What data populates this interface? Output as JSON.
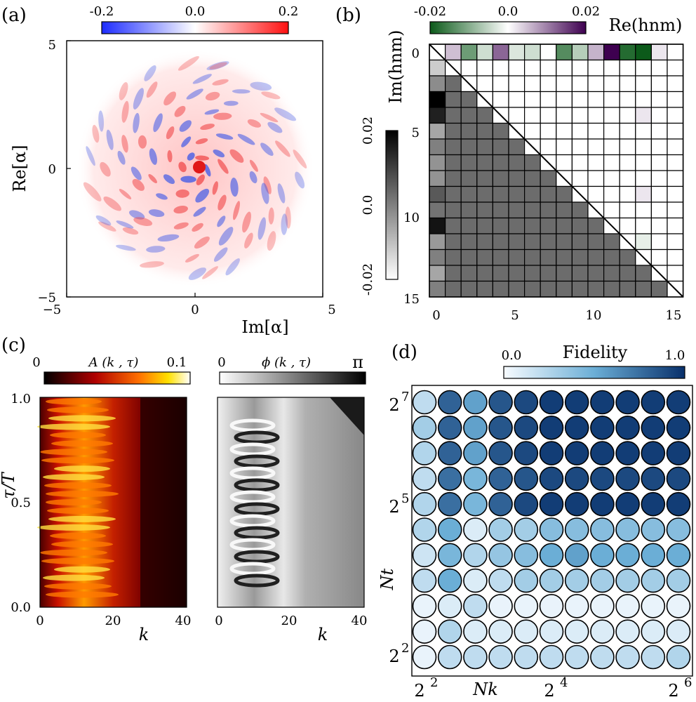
{
  "panels": {
    "a": {
      "label": "(a)",
      "xlabel": "Im[α]",
      "ylabel": "Re[α]",
      "xticks": [
        "−5",
        "0",
        "5"
      ],
      "yticks": [
        "5",
        "0",
        "−5"
      ],
      "colorbar": {
        "ticks": [
          "-0.2",
          "0.0",
          "0.2"
        ],
        "range": [
          -0.2,
          0.2
        ],
        "cmap": "bwr"
      }
    },
    "b": {
      "label": "(b)",
      "upper_label": "Re(hnm)",
      "lower_label": "Im(hnm)",
      "xticks": [
        "0",
        "5",
        "10",
        "15"
      ],
      "yticks": [
        "0",
        "5",
        "10",
        "15"
      ],
      "colorbar_re": {
        "ticks": [
          "-0.02",
          "0.0",
          "0.02"
        ],
        "range": [
          -0.02,
          0.02
        ],
        "cmap": "green-white-purple"
      },
      "colorbar_im": {
        "ticks": [
          "0.02",
          "0.0",
          "-0.02"
        ],
        "range": [
          -0.02,
          0.02
        ],
        "cmap": "grays"
      }
    },
    "c": {
      "label": "(c)",
      "ylabel": "τ/T",
      "xlabel_left": "k",
      "xlabel_right": "k",
      "yticks": [
        "1.0",
        "0.5",
        "0.0"
      ],
      "xticks": [
        "0",
        "20",
        "40"
      ],
      "amp_title": "A (k , τ)",
      "phase_title": "ϕ (k , τ)",
      "amp_cbar_ticks": [
        "0",
        "0.1"
      ],
      "phase_cbar_ticks": [
        "0",
        "π"
      ]
    },
    "d": {
      "label": "(d)",
      "title": "Fidelity",
      "cbar_ticks": [
        "0.0",
        "1.0"
      ],
      "xlabel": "Nk",
      "ylabel": "Nt"
    }
  },
  "chart_data": [
    {
      "panel": "a",
      "type": "heatmap",
      "description_free": true,
      "x_range": [
        -5,
        5
      ],
      "y_range": [
        -5,
        5
      ],
      "value_range": [
        -0.2,
        0.2
      ]
    },
    {
      "panel": "b",
      "type": "heatmap",
      "size": 16,
      "re_row0": [
        0,
        0.005,
        -0.012,
        -0.004,
        0.012,
        -0.003,
        -0.004,
        0,
        -0.014,
        -0.006,
        0.006,
        0.022,
        -0.018,
        -0.022,
        0.002,
        0
      ],
      "re_col13": [
        0,
        0,
        0,
        0,
        0.002,
        0,
        0,
        0,
        0,
        0.002,
        0,
        0,
        -0.002,
        0.006,
        0,
        0
      ],
      "im_col0": [
        0,
        -0.012,
        -0.002,
        0.02,
        0.015,
        -0.006,
        0,
        -0.003,
        -0.003,
        0.006,
        0.002,
        0.017,
        -0.004,
        0,
        -0.006,
        0
      ],
      "im_background": 0.003
    },
    {
      "panel": "c",
      "type": "heatmap",
      "series": [
        {
          "name": "A (k , τ)",
          "x_range": [
            0,
            40
          ],
          "y_range": [
            0,
            1
          ],
          "value_range": [
            0,
            0.1
          ]
        },
        {
          "name": "ϕ (k , τ)",
          "x_range": [
            0,
            40
          ],
          "y_range": [
            0,
            1
          ],
          "value_range": [
            0,
            3.1416
          ]
        }
      ]
    },
    {
      "panel": "d",
      "type": "heatmap",
      "xlabel": "Nk",
      "ylabel": "Nt",
      "x_tick_labels": [
        "2",
        "2",
        "2"
      ],
      "x_tick_powers": [
        "2",
        "4",
        "6"
      ],
      "y_tick_labels": [
        "2",
        "2",
        "2"
      ],
      "y_tick_powers": [
        "7",
        "5",
        "2"
      ],
      "value_range": [
        0,
        1
      ],
      "fidelity_rows_top_to_bottom": [
        [
          0.2,
          0.8,
          0.55,
          0.85,
          0.9,
          0.95,
          0.95,
          0.95,
          0.95,
          0.95,
          0.95
        ],
        [
          0.3,
          0.8,
          0.55,
          0.85,
          0.9,
          0.95,
          0.95,
          0.95,
          0.95,
          0.95,
          0.95
        ],
        [
          0.25,
          0.8,
          0.55,
          0.85,
          0.9,
          0.95,
          0.95,
          0.95,
          0.95,
          0.95,
          0.95
        ],
        [
          0.2,
          0.75,
          0.45,
          0.8,
          0.85,
          0.9,
          0.9,
          0.9,
          0.9,
          0.9,
          0.9
        ],
        [
          0.25,
          0.75,
          0.45,
          0.8,
          0.9,
          0.95,
          0.95,
          0.95,
          0.95,
          0.95,
          0.95
        ],
        [
          0.25,
          0.5,
          0.1,
          0.3,
          0.3,
          0.4,
          0.4,
          0.4,
          0.4,
          0.4,
          0.4
        ],
        [
          0.15,
          0.45,
          0.25,
          0.35,
          0.4,
          0.5,
          0.55,
          0.5,
          0.5,
          0.5,
          0.5
        ],
        [
          0.2,
          0.5,
          0.1,
          0.2,
          0.3,
          0.3,
          0.3,
          0.3,
          0.3,
          0.3,
          0.3
        ],
        [
          0.05,
          0.1,
          0.2,
          0.05,
          0.05,
          0.05,
          0.05,
          0.05,
          0.05,
          0.05,
          0.05
        ],
        [
          0.05,
          0.25,
          0.1,
          0.1,
          0.1,
          0.1,
          0.1,
          0.1,
          0.1,
          0.1,
          0.1
        ],
        [
          0.05,
          0.2,
          0.2,
          0.2,
          0.2,
          0.2,
          0.2,
          0.2,
          0.2,
          0.2,
          0.25
        ]
      ]
    }
  ]
}
